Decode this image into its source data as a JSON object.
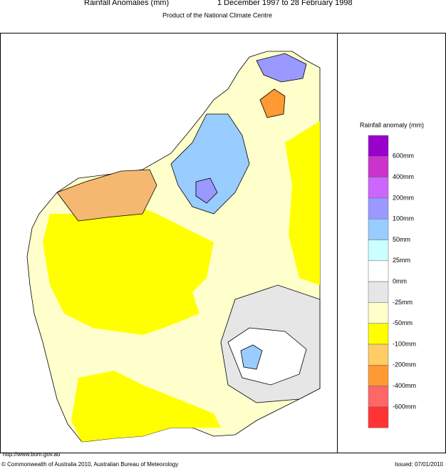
{
  "header": {
    "title": "Rainfall Anomalies (mm)",
    "period": "1 December 1997 to 28 February 1998",
    "subtitle": "Product of the National Climate Centre"
  },
  "legend": {
    "title": "Rainfall anomaly (mm)",
    "colors": [
      "#9900cc",
      "#cc33cc",
      "#cc66ff",
      "#9999ff",
      "#99ccff",
      "#ccffff",
      "#ffffff",
      "#e6e6e6",
      "#ffffcc",
      "#ffff00",
      "#ffcc66",
      "#ff9933",
      "#ff6666",
      "#ff3333"
    ],
    "labels": [
      "600mm",
      "400mm",
      "200mm",
      "100mm",
      "50mm",
      "25mm",
      "0mm",
      "-25mm",
      "-50mm",
      "-100mm",
      "-200mm",
      "-400mm",
      "-600mm"
    ]
  },
  "footer": {
    "url": "http://www.bom.gov.au",
    "copyright": "© Commonwealth of Australia 2010, Australian Bureau of Meteorology",
    "issued": "Issued: 07/01/2010"
  }
}
